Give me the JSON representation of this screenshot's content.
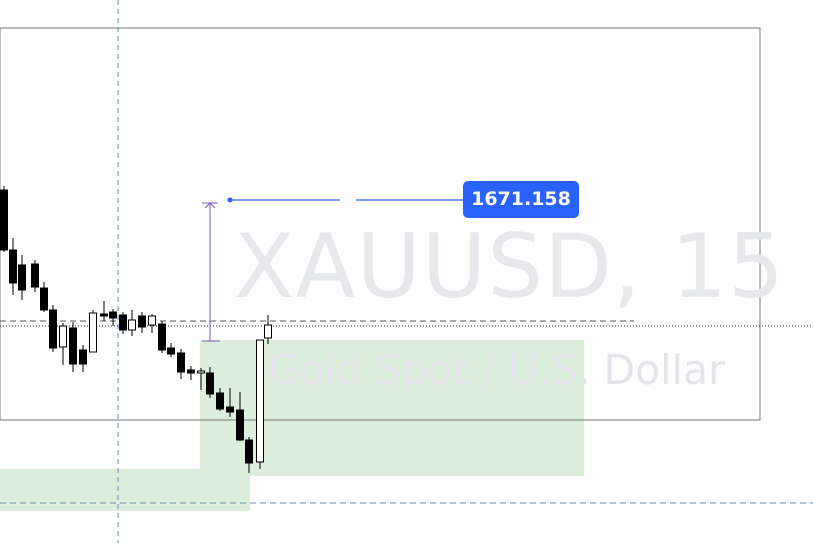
{
  "watermark": {
    "symbol": "XAUUSD, 15",
    "description": "Gold Spot / U.S. Dollar"
  },
  "price_label": {
    "value": "1671.158"
  },
  "colors": {
    "price_label_bg": "#2962ff",
    "tool_line": "#2962ff",
    "measure_arrow": "#7e57c2",
    "zone_fill": "#dbeedb",
    "candle": "#000000",
    "crosshair": "#5b8ec9",
    "watermark": "#e8e9ed"
  }
}
